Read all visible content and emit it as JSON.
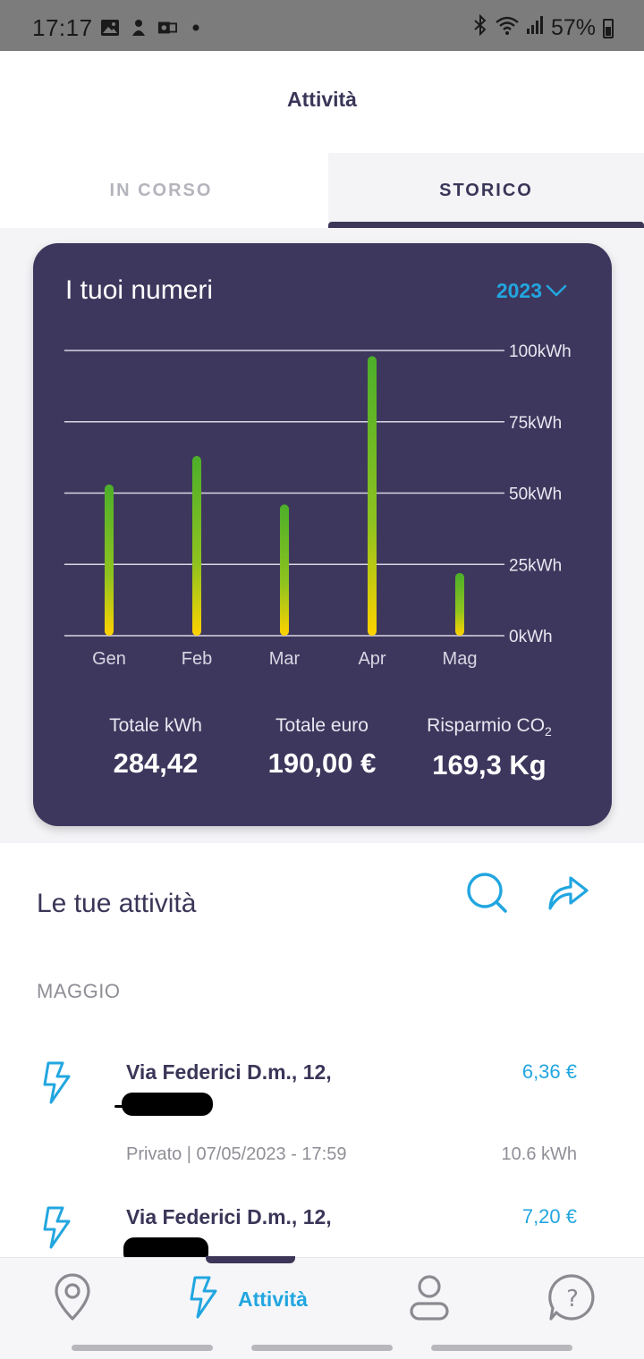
{
  "status_bar": {
    "time": "17:17",
    "battery_percent": "57%"
  },
  "header": {
    "title": "Attività"
  },
  "tabs": [
    {
      "label": "IN CORSO",
      "active": false
    },
    {
      "label": "STORICO",
      "active": true
    }
  ],
  "stats_card": {
    "title": "I tuoi numeri",
    "year": "2023",
    "totals": [
      {
        "label": "Totale kWh",
        "value": "284,42"
      },
      {
        "label": "Totale euro",
        "value": "190,00 €"
      },
      {
        "label": "Risparmio CO",
        "label_sub": "2",
        "value": "169,3 Kg"
      }
    ]
  },
  "chart_data": {
    "type": "bar",
    "categories": [
      "Gen",
      "Feb",
      "Mar",
      "Apr",
      "Mag"
    ],
    "values": [
      53,
      63,
      46,
      98,
      22
    ],
    "yticks": [
      "0kWh",
      "25kWh",
      "50kWh",
      "75kWh",
      "100kWh"
    ],
    "ylim": [
      0,
      100
    ],
    "grid": true,
    "colors": {
      "bar_top": "#4caf2a",
      "bar_bottom": "#ffd200",
      "grid": "#d8d6e4"
    }
  },
  "activities": {
    "title": "Le tue attività",
    "month": "MAGGIO",
    "items": [
      {
        "address": "Via Federici D.m., 12,",
        "price": "6,36 €",
        "meta": "Privato | 07/05/2023 - 17:59",
        "kwh": "10.6 kWh"
      },
      {
        "address": "Via Federici D.m., 12,",
        "price": "7,20 €",
        "meta": "",
        "kwh": ""
      }
    ]
  },
  "bottom_nav": {
    "items": [
      {
        "icon": "map-pin-icon",
        "label": ""
      },
      {
        "icon": "bolt-icon",
        "label": "Attività"
      },
      {
        "icon": "user-icon",
        "label": ""
      },
      {
        "icon": "help-icon",
        "label": ""
      }
    ]
  },
  "colors": {
    "primary": "#3e375d",
    "accent": "#22a6e0"
  }
}
